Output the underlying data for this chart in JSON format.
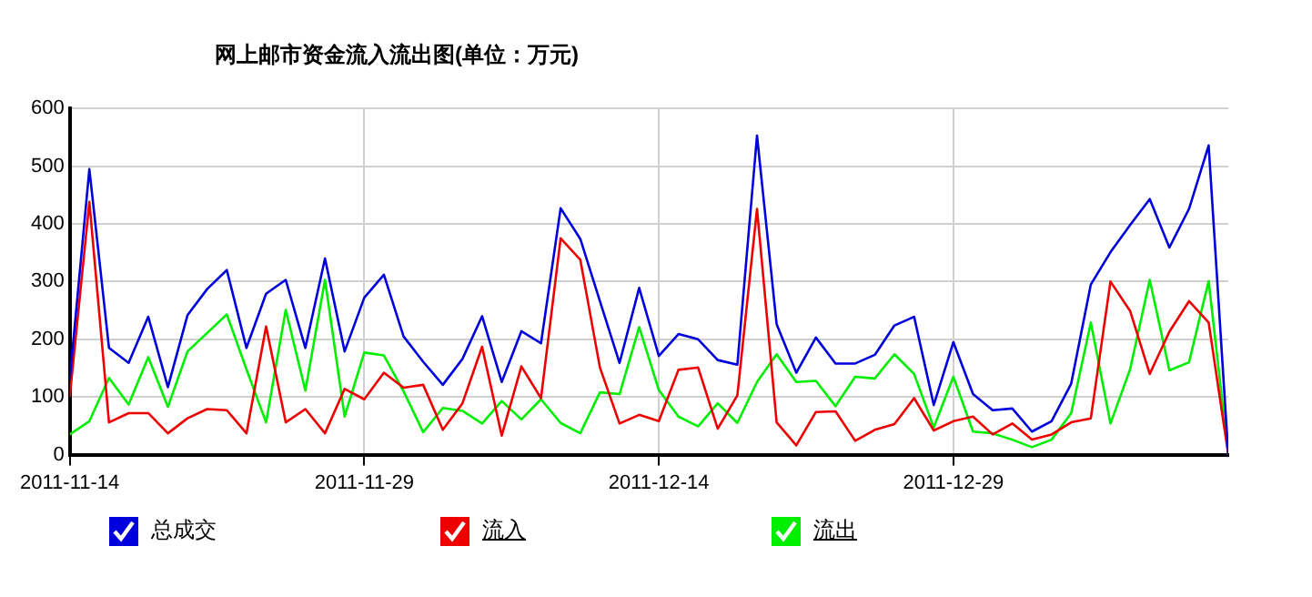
{
  "chart_data": {
    "type": "line",
    "title": "网上邮市资金流入流出图(单位：万元)",
    "x": [
      "2011-11-14",
      "2011-11-15",
      "2011-11-16",
      "2011-11-17",
      "2011-11-18",
      "2011-11-19",
      "2011-11-20",
      "2011-11-21",
      "2011-11-22",
      "2011-11-23",
      "2011-11-24",
      "2011-11-25",
      "2011-11-26",
      "2011-11-27",
      "2011-11-28",
      "2011-11-29",
      "2011-11-30",
      "2011-12-01",
      "2011-12-02",
      "2011-12-03",
      "2011-12-04",
      "2011-12-05",
      "2011-12-06",
      "2011-12-07",
      "2011-12-08",
      "2011-12-09",
      "2011-12-10",
      "2011-12-11",
      "2011-12-12",
      "2011-12-13",
      "2011-12-14",
      "2011-12-15",
      "2011-12-16",
      "2011-12-17",
      "2011-12-18",
      "2011-12-19",
      "2011-12-20",
      "2011-12-21",
      "2011-12-22",
      "2011-12-23",
      "2011-12-24",
      "2011-12-25",
      "2011-12-26",
      "2011-12-27",
      "2011-12-28",
      "2011-12-29",
      "2011-12-30",
      "2011-12-31",
      "2012-01-01",
      "2012-01-02",
      "2012-01-03",
      "2012-01-04",
      "2012-01-05",
      "2012-01-06",
      "2012-01-07",
      "2012-01-08",
      "2012-01-09",
      "2012-01-10",
      "2012-01-11",
      "2012-01-12"
    ],
    "series": [
      {
        "name": "总成交",
        "color": "#0000dd",
        "values": [
          130,
          495,
          185,
          159,
          239,
          117,
          242,
          287,
          320,
          185,
          279,
          303,
          185,
          340,
          179,
          272,
          312,
          205,
          161,
          121,
          166,
          240,
          126,
          214,
          193,
          427,
          374,
          266,
          159,
          289,
          171,
          209,
          200,
          164,
          156,
          553,
          226,
          142,
          203,
          158,
          158,
          173,
          224,
          239,
          86,
          195,
          105,
          77,
          80,
          40,
          58,
          123,
          295,
          351,
          398,
          443,
          359,
          426,
          536,
          0
        ]
      },
      {
        "name": "流入",
        "color": "#ee0000",
        "values": [
          100,
          438,
          56,
          72,
          72,
          37,
          63,
          79,
          77,
          37,
          222,
          56,
          79,
          37,
          114,
          96,
          142,
          116,
          121,
          43,
          89,
          187,
          33,
          153,
          98,
          375,
          338,
          151,
          54,
          69,
          58,
          147,
          151,
          45,
          103,
          426,
          56,
          16,
          74,
          75,
          24,
          43,
          53,
          98,
          42,
          58,
          66,
          35,
          54,
          26,
          35,
          56,
          63,
          300,
          249,
          140,
          213,
          266,
          229,
          0
        ]
      },
      {
        "name": "流出",
        "color": "#00ee00",
        "values": [
          35,
          58,
          133,
          87,
          169,
          83,
          179,
          211,
          243,
          148,
          56,
          251,
          111,
          303,
          66,
          177,
          172,
          110,
          39,
          81,
          76,
          54,
          93,
          61,
          96,
          55,
          37,
          108,
          105,
          221,
          112,
          66,
          49,
          89,
          55,
          126,
          174,
          126,
          128,
          84,
          135,
          132,
          174,
          140,
          47,
          135,
          40,
          37,
          26,
          13,
          26,
          72,
          229,
          54,
          148,
          303,
          146,
          160,
          301,
          0
        ]
      }
    ],
    "xlim": [
      "2011-11-14",
      "2012-01-12"
    ],
    "xticks": [
      "2011-11-14",
      "2011-11-29",
      "2011-12-14",
      "2011-12-29"
    ],
    "ylim": [
      0,
      600
    ],
    "yticks": [
      0,
      100,
      200,
      300,
      400,
      500,
      600
    ],
    "grid": true,
    "legend": "bottom",
    "marker": "none",
    "line_style": "solid"
  }
}
